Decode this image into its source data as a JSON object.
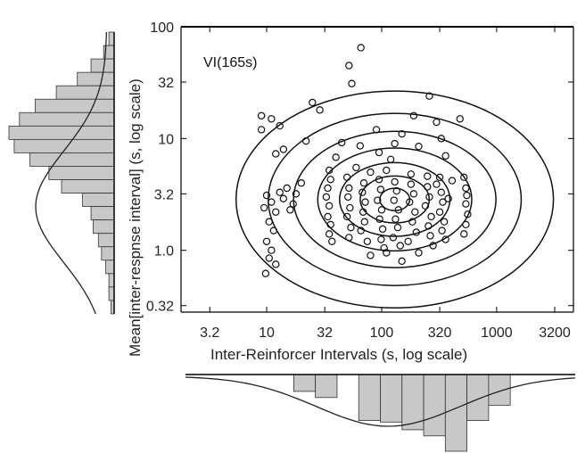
{
  "chart_data": {
    "type": "scatter",
    "annotation": "VI(165s)",
    "xlabel": "Inter-Reinforcer Intervals (s, log scale)",
    "ylabel": "Mean[inter-respnse interval] (s, log scale)",
    "x_scale": "log",
    "y_scale": "log",
    "xlim": [
      1.8,
      5000
    ],
    "ylim": [
      0.28,
      100
    ],
    "x_ticks": [
      3.2,
      10,
      32,
      100,
      320,
      1000,
      3200
    ],
    "x_tick_labels": [
      "3.2",
      "10",
      "32",
      "100",
      "320",
      "1000",
      "3200"
    ],
    "y_ticks": [
      0.32,
      1.0,
      3.2,
      10,
      32,
      100
    ],
    "y_tick_labels": [
      "0.32",
      "1.0",
      "3.2",
      "10",
      "32",
      "100"
    ],
    "grid": false,
    "contours": {
      "center": [
        130,
        2.85
      ],
      "radii_decades": [
        [
          0.13,
          0.1
        ],
        [
          0.3,
          0.21
        ],
        [
          0.48,
          0.33
        ],
        [
          0.67,
          0.46
        ],
        [
          0.88,
          0.61
        ],
        [
          1.1,
          0.77
        ],
        [
          1.38,
          0.97
        ]
      ]
    },
    "points": [
      [
        66,
        65
      ],
      [
        52,
        45
      ],
      [
        55,
        31
      ],
      [
        25,
        21
      ],
      [
        29,
        18
      ],
      [
        9,
        16
      ],
      [
        11,
        15
      ],
      [
        13,
        13
      ],
      [
        9,
        12
      ],
      [
        22,
        9.5
      ],
      [
        14,
        8
      ],
      [
        12,
        7.3
      ],
      [
        260,
        24
      ],
      [
        190,
        16
      ],
      [
        150,
        11
      ],
      [
        300,
        14
      ],
      [
        480,
        15
      ],
      [
        330,
        10
      ],
      [
        210,
        8.5
      ],
      [
        360,
        7
      ],
      [
        120,
        6.5
      ],
      [
        95,
        7.5
      ],
      [
        65,
        8.6
      ],
      [
        45,
        9.2
      ],
      [
        90,
        12
      ],
      [
        130,
        9
      ],
      [
        40,
        6.8
      ],
      [
        60,
        5.5
      ],
      [
        80,
        5
      ],
      [
        110,
        5.2
      ],
      [
        180,
        4.8
      ],
      [
        250,
        4.6
      ],
      [
        320,
        4.5
      ],
      [
        410,
        4.2
      ],
      [
        520,
        4.5
      ],
      [
        540,
        3.6
      ],
      [
        550,
        3.1
      ],
      [
        540,
        2.6
      ],
      [
        560,
        2.1
      ],
      [
        540,
        1.7
      ],
      [
        520,
        1.4
      ],
      [
        35,
        5.2
      ],
      [
        36,
        4.3
      ],
      [
        34,
        3.6
      ],
      [
        33,
        3.0
      ],
      [
        35,
        2.5
      ],
      [
        34,
        2.0
      ],
      [
        36,
        1.7
      ],
      [
        35,
        1.4
      ],
      [
        37,
        1.2
      ],
      [
        50,
        4.5
      ],
      [
        52,
        3.6
      ],
      [
        51,
        3.0
      ],
      [
        53,
        2.4
      ],
      [
        50,
        2.0
      ],
      [
        54,
        1.6
      ],
      [
        52,
        1.3
      ],
      [
        70,
        4.0
      ],
      [
        68,
        3.3
      ],
      [
        72,
        2.7
      ],
      [
        69,
        2.2
      ],
      [
        71,
        1.8
      ],
      [
        66,
        1.5
      ],
      [
        75,
        1.2
      ],
      [
        95,
        4.3
      ],
      [
        98,
        3.5
      ],
      [
        92,
        2.8
      ],
      [
        100,
        2.3
      ],
      [
        96,
        1.9
      ],
      [
        102,
        1.55
      ],
      [
        99,
        1.25
      ],
      [
        105,
        1.05
      ],
      [
        130,
        4.1
      ],
      [
        135,
        3.4
      ],
      [
        128,
        2.8
      ],
      [
        140,
        2.3
      ],
      [
        132,
        1.9
      ],
      [
        138,
        1.6
      ],
      [
        126,
        1.3
      ],
      [
        145,
        1.1
      ],
      [
        180,
        3.9
      ],
      [
        190,
        3.2
      ],
      [
        175,
        2.7
      ],
      [
        195,
        2.2
      ],
      [
        185,
        1.8
      ],
      [
        200,
        1.45
      ],
      [
        170,
        1.2
      ],
      [
        210,
        0.95
      ],
      [
        250,
        3.7
      ],
      [
        260,
        3.0
      ],
      [
        240,
        2.5
      ],
      [
        270,
        2.0
      ],
      [
        255,
        1.65
      ],
      [
        265,
        1.35
      ],
      [
        280,
        1.1
      ],
      [
        330,
        3.3
      ],
      [
        340,
        2.7
      ],
      [
        320,
        2.2
      ],
      [
        350,
        1.8
      ],
      [
        335,
        1.5
      ],
      [
        360,
        1.25
      ],
      [
        300,
        3.9
      ],
      [
        380,
        2.9
      ],
      [
        10,
        3.1
      ],
      [
        11,
        2.7
      ],
      [
        9.5,
        2.4
      ],
      [
        12,
        2.2
      ],
      [
        10.5,
        1.8
      ],
      [
        11.5,
        1.5
      ],
      [
        10,
        1.2
      ],
      [
        11,
        1.0
      ],
      [
        10.5,
        0.85
      ],
      [
        12,
        0.75
      ],
      [
        13,
        3.3
      ],
      [
        14,
        2.9
      ],
      [
        15,
        3.6
      ],
      [
        17,
        2.6
      ],
      [
        18,
        3.2
      ],
      [
        20,
        4.0
      ],
      [
        16,
        2.3
      ],
      [
        9.8,
        0.62
      ],
      [
        150,
        0.8
      ],
      [
        110,
        0.95
      ],
      [
        80,
        0.9
      ]
    ],
    "x_marginal_hist": [
      0,
      0,
      0,
      0,
      0,
      0.22,
      0.3,
      0,
      0.6,
      0.62,
      0.72,
      0.8,
      1.0,
      0.6,
      0.4,
      0,
      0,
      0
    ],
    "y_marginal_hist": [
      0.05,
      0.1,
      0.22,
      0.35,
      0.55,
      0.75,
      0.9,
      1.0,
      0.95,
      0.8,
      0.62,
      0.5,
      0.3,
      0.22,
      0.2,
      0.15,
      0.12,
      0.08,
      0.05,
      0.05,
      0.03
    ]
  }
}
